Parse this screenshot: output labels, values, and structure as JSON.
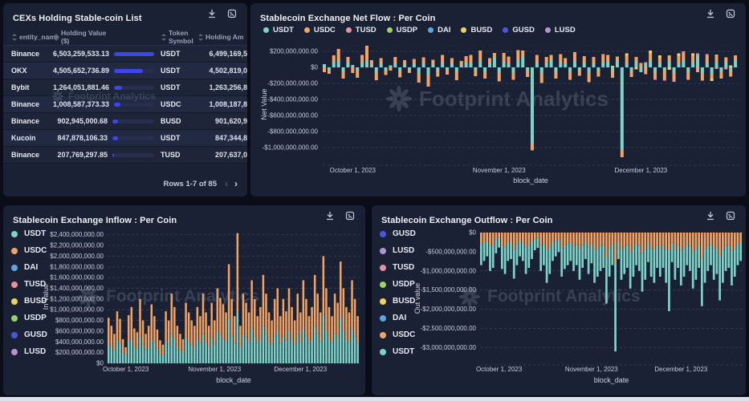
{
  "watermark": {
    "text": "Footprint Analytics"
  },
  "colors": {
    "USDT": "#7ed3c8",
    "USDC": "#f2a466",
    "TUSD": "#e98f9e",
    "USDP": "#9fd066",
    "DAI": "#58a7e3",
    "BUSD": "#f1d060",
    "GUSD": "#4a55e0",
    "LUSD": "#b393d3",
    "accent_bar": "#3d45ec"
  },
  "table": {
    "title": "CEXs Holding Stable-coin List",
    "columns": [
      "entity_name",
      "Holding Value ($)",
      "Token Symbol",
      "Holding Am"
    ],
    "rows": [
      {
        "entity": "Binance",
        "value": "6,503,259,533.13",
        "token": "USDT",
        "amount": "6,499,169,5"
      },
      {
        "entity": "OKX",
        "value": "4,505,652,736.89",
        "token": "USDT",
        "amount": "4,502,819,0"
      },
      {
        "entity": "Bybit",
        "value": "1,264,051,881.46",
        "token": "USDT",
        "amount": "1,263,256,8"
      },
      {
        "entity": "Binance",
        "value": "1,008,587,373.33",
        "token": "USDC",
        "amount": "1,008,187,8"
      },
      {
        "entity": "Binance",
        "value": "902,945,000.68",
        "token": "BUSD",
        "amount": "901,620,9"
      },
      {
        "entity": "Kucoin",
        "value": "847,878,106.33",
        "token": "USDT",
        "amount": "847,344,8"
      },
      {
        "entity": "Binance",
        "value": "207,769,297.85",
        "token": "TUSD",
        "amount": "207,637,0"
      }
    ],
    "pagination": "Rows 1-7 of 85",
    "pagination_prev": "‹",
    "pagination_next": "›"
  },
  "chart_data": [
    {
      "id": "netflow",
      "type": "bar",
      "stacked": true,
      "title": "Stablecoin Exchange Net Flow : Per Coin",
      "xlabel": "block_date",
      "ylabel": "Net Value",
      "value_unit": "USD millions (daily net flow per bar)",
      "legend": [
        "USDT",
        "USDC",
        "TUSD",
        "USDP",
        "DAI",
        "BUSD",
        "GUSD",
        "LUSD"
      ],
      "x_ticks": [
        {
          "i": 6,
          "label": "October 1, 2023"
        },
        {
          "i": 37,
          "label": "November 1, 2023"
        },
        {
          "i": 67,
          "label": "December 1, 2023"
        }
      ],
      "y_ticks": [
        {
          "v": 200,
          "label": "$200,000,000.00"
        },
        {
          "v": 0,
          "label": "$0"
        },
        {
          "v": -200,
          "label": "-$200,000,000.00"
        },
        {
          "v": -400,
          "label": "-$400,000,000.00"
        },
        {
          "v": -600,
          "label": "-$600,000,000.00"
        },
        {
          "v": -800,
          "label": "-$800,000,000.00"
        },
        {
          "v": -1000,
          "label": "-$1,000,000,000.00"
        }
      ],
      "series": [
        {
          "name": "USDT",
          "values": [
            40,
            -30,
            60,
            90,
            -50,
            70,
            30,
            -40,
            55,
            80,
            30,
            -60,
            45,
            -35,
            25,
            50,
            -45,
            35,
            -25,
            40,
            -70,
            50,
            -90,
            35,
            -45,
            60,
            -35,
            45,
            -60,
            30,
            55,
            60,
            -40,
            80,
            -55,
            45,
            120,
            -65,
            70,
            50,
            -60,
            85,
            140,
            -45,
            -950,
            60,
            -75,
            50,
            95,
            -55,
            65,
            45,
            -60,
            75,
            -40,
            55,
            -70,
            50,
            -45,
            65,
            70,
            -50,
            85,
            -1030,
            55,
            -50,
            70,
            -60,
            45,
            85,
            -55,
            60,
            -45,
            75,
            -65,
            50,
            90,
            -55,
            60,
            150,
            -70,
            55,
            -80,
            65,
            -55,
            70,
            -45,
            85
          ]
        },
        {
          "name": "USDC",
          "values": [
            -60,
            -50,
            90,
            140,
            -90,
            60,
            -70,
            -90,
            100,
            190,
            60,
            -100,
            70,
            -60,
            -40,
            80,
            -80,
            55,
            -45,
            65,
            -120,
            75,
            -150,
            60,
            -70,
            95,
            -55,
            70,
            -100,
            50,
            85,
            95,
            -70,
            130,
            -85,
            70,
            60,
            -110,
            110,
            85,
            -95,
            130,
            70,
            -75,
            -85,
            95,
            -120,
            80,
            60,
            -85,
            100,
            70,
            -95,
            115,
            -65,
            85,
            -115,
            80,
            -70,
            100,
            85,
            -80,
            50,
            -90,
            90,
            -70,
            60,
            55,
            -85,
            90,
            -70,
            60,
            -95,
            75,
            -85,
            90,
            80,
            -100,
            85,
            -60,
            -95,
            85,
            -60,
            95,
            -85,
            55,
            -70,
            65
          ]
        },
        {
          "name": "TUSD",
          "values": [
            0,
            0,
            0,
            0,
            0,
            0,
            0,
            0,
            0,
            0,
            0,
            0,
            0,
            0,
            0,
            0,
            0,
            0,
            0,
            0,
            0,
            0,
            0,
            0,
            0,
            0,
            0,
            0,
            0,
            0,
            0,
            0,
            0,
            0,
            0,
            0,
            0,
            0,
            0,
            0,
            0,
            0,
            0,
            0,
            0,
            0,
            0,
            0,
            0,
            0,
            0,
            0,
            0,
            0,
            0,
            0,
            0,
            0,
            0,
            0,
            0,
            0,
            0,
            0,
            0,
            0,
            0,
            0,
            20,
            0,
            -30,
            0,
            -25,
            0,
            -30,
            0,
            30,
            0,
            0,
            25,
            0,
            25,
            0,
            -20,
            0,
            -25,
            0,
            0
          ]
        },
        {
          "name": "BUSD",
          "values": [
            0,
            0,
            0,
            0,
            0,
            0,
            0,
            0,
            0,
            0,
            0,
            0,
            0,
            0,
            0,
            0,
            0,
            0,
            0,
            0,
            0,
            0,
            0,
            0,
            0,
            0,
            0,
            0,
            0,
            0,
            0,
            0,
            0,
            0,
            0,
            0,
            0,
            0,
            0,
            0,
            0,
            0,
            0,
            0,
            0,
            0,
            0,
            0,
            0,
            0,
            0,
            0,
            0,
            0,
            0,
            0,
            0,
            0,
            0,
            0,
            0,
            20,
            0,
            0,
            30,
            0,
            -25,
            0,
            0,
            35,
            0,
            30,
            0,
            -30,
            0,
            35,
            0,
            0,
            30,
            0,
            0,
            0,
            -30,
            0,
            0,
            0,
            25,
            0
          ]
        }
      ]
    },
    {
      "id": "inflow",
      "type": "bar",
      "stacked": true,
      "title": "Stablecoin Exchange Inflow : Per Coin",
      "xlabel": "block_date",
      "ylabel": "In Value",
      "value_unit": "USD millions (daily inflow per bar)",
      "legend": [
        "USDT",
        "USDC",
        "DAI",
        "TUSD",
        "BUSD",
        "USDP",
        "GUSD",
        "LUSD"
      ],
      "x_ticks": [
        {
          "i": 6,
          "label": "October 1, 2023"
        },
        {
          "i": 37,
          "label": "November 1, 2023"
        },
        {
          "i": 67,
          "label": "December 1, 2023"
        }
      ],
      "y_ticks": [
        {
          "v": 2400,
          "label": "$2,400,000,000.00"
        },
        {
          "v": 2200,
          "label": "$2,200,000,000.00"
        },
        {
          "v": 2000,
          "label": "$2,000,000,000.00"
        },
        {
          "v": 1800,
          "label": "$1,800,000,000.00"
        },
        {
          "v": 1600,
          "label": "$1,600,000,000.00"
        },
        {
          "v": 1400,
          "label": "$1,400,000,000.00"
        },
        {
          "v": 1200,
          "label": "$1,200,000,000.00"
        },
        {
          "v": 1000,
          "label": "$1,000,000,000.00"
        },
        {
          "v": 800,
          "label": "$800,000,000.00"
        },
        {
          "v": 600,
          "label": "$600,000,000.00"
        },
        {
          "v": 400,
          "label": "$400,000,000.00"
        },
        {
          "v": 200,
          "label": "$200,000,000.00"
        },
        {
          "v": 0,
          "label": "$0"
        }
      ],
      "series": [
        {
          "name": "USDT",
          "values": [
            350,
            300,
            250,
            420,
            380,
            200,
            150,
            400,
            450,
            300,
            280,
            500,
            350,
            250,
            300,
            450,
            380,
            280,
            180,
            150,
            420,
            350,
            550,
            450,
            300,
            250,
            200,
            480,
            400,
            350,
            300,
            450,
            380,
            550,
            400,
            300,
            480,
            350,
            600,
            520,
            450,
            400,
            850,
            500,
            380,
            950,
            300,
            550,
            480,
            400,
            650,
            500,
            380,
            450,
            700,
            550,
            400,
            350,
            500,
            600,
            380,
            500,
            420,
            600,
            450,
            350,
            550,
            400,
            650,
            500,
            380,
            450,
            700,
            550,
            400,
            900,
            600,
            450,
            380,
            550,
            480,
            850,
            600,
            450,
            400,
            650,
            500,
            380
          ]
        },
        {
          "name": "USDC",
          "values": [
            500,
            400,
            300,
            550,
            450,
            250,
            150,
            500,
            600,
            350,
            300,
            700,
            450,
            300,
            400,
            650,
            500,
            350,
            250,
            200,
            550,
            450,
            750,
            600,
            400,
            300,
            250,
            650,
            550,
            450,
            400,
            600,
            500,
            750,
            550,
            400,
            650,
            450,
            800,
            700,
            650,
            550,
            1000,
            700,
            500,
            1480,
            400,
            750,
            650,
            550,
            900,
            700,
            500,
            600,
            950,
            750,
            550,
            450,
            700,
            800,
            500,
            700,
            550,
            800,
            600,
            450,
            750,
            550,
            900,
            700,
            500,
            600,
            950,
            750,
            550,
            1100,
            800,
            600,
            500,
            750,
            650,
            1050,
            800,
            600,
            550,
            900,
            700,
            500
          ]
        }
      ]
    },
    {
      "id": "outflow",
      "type": "bar",
      "stacked": true,
      "title": "Stablecoin Exchange Outflow : Per Coin",
      "xlabel": "block_date",
      "ylabel": "Out value",
      "value_unit": "USD millions (daily outflow per bar, negative)",
      "legend": [
        "GUSD",
        "LUSD",
        "TUSD",
        "USDP",
        "BUSD",
        "DAI",
        "USDC",
        "USDT"
      ],
      "x_ticks": [
        {
          "i": 6,
          "label": "October 1, 2023"
        },
        {
          "i": 37,
          "label": "November 1, 2023"
        },
        {
          "i": 67,
          "label": "December 1, 2023"
        }
      ],
      "y_ticks": [
        {
          "v": 0,
          "label": "$0"
        },
        {
          "v": -500,
          "label": "-$500,000,000.00"
        },
        {
          "v": -1000,
          "label": "-$1,000,000,000.00"
        },
        {
          "v": -1500,
          "label": "-$1,500,000,000.00"
        },
        {
          "v": -2000,
          "label": "-$2,000,000,000.00"
        },
        {
          "v": -2500,
          "label": "-$2,500,000,000.00"
        },
        {
          "v": -3000,
          "label": "-$3,000,000,000.00"
        }
      ],
      "series": [
        {
          "name": "USDC",
          "values": [
            -300,
            -260,
            -220,
            -350,
            -320,
            -190,
            -140,
            -330,
            -380,
            -260,
            -240,
            -420,
            -300,
            -220,
            -260,
            -380,
            -320,
            -240,
            -160,
            -140,
            -350,
            -300,
            -460,
            -380,
            -260,
            -220,
            -180,
            -400,
            -330,
            -300,
            -260,
            -350,
            -300,
            -430,
            -320,
            -240,
            -380,
            -280,
            -460,
            -400,
            -350,
            -320,
            -650,
            -400,
            -300,
            -800,
            -240,
            -430,
            -380,
            -320,
            -510,
            -400,
            -300,
            -350,
            -540,
            -430,
            -270,
            -400,
            -460,
            -320,
            -400,
            -320,
            -460,
            -450,
            -270,
            -430,
            -320,
            -480,
            -400,
            -300,
            -350,
            -510,
            -430,
            -320,
            -670,
            -460,
            -350,
            -300,
            -430,
            -380,
            -620,
            -460,
            -350,
            -320,
            -480,
            -400,
            -300,
            -260
          ]
        },
        {
          "name": "USDT",
          "values": [
            -550,
            -480,
            -400,
            -650,
            -600,
            -350,
            -250,
            -620,
            -700,
            -480,
            -450,
            -780,
            -550,
            -400,
            -480,
            -700,
            -600,
            -450,
            -300,
            -260,
            -650,
            -550,
            -850,
            -700,
            -480,
            -400,
            -330,
            -750,
            -620,
            -550,
            -480,
            -650,
            -550,
            -800,
            -600,
            -450,
            -700,
            -520,
            -850,
            -750,
            -650,
            -600,
            -1200,
            -750,
            -550,
            -2300,
            -450,
            -800,
            -700,
            -600,
            -950,
            -750,
            -550,
            -650,
            -1000,
            -800,
            -500,
            -750,
            -850,
            -600,
            -750,
            -600,
            -850,
            -1600,
            -500,
            -800,
            -600,
            -900,
            -750,
            -550,
            -650,
            -950,
            -800,
            -600,
            -1250,
            -850,
            -650,
            -550,
            -800,
            -700,
            -1150,
            -850,
            -650,
            -600,
            -900,
            -750,
            -550,
            -480
          ]
        }
      ]
    }
  ]
}
